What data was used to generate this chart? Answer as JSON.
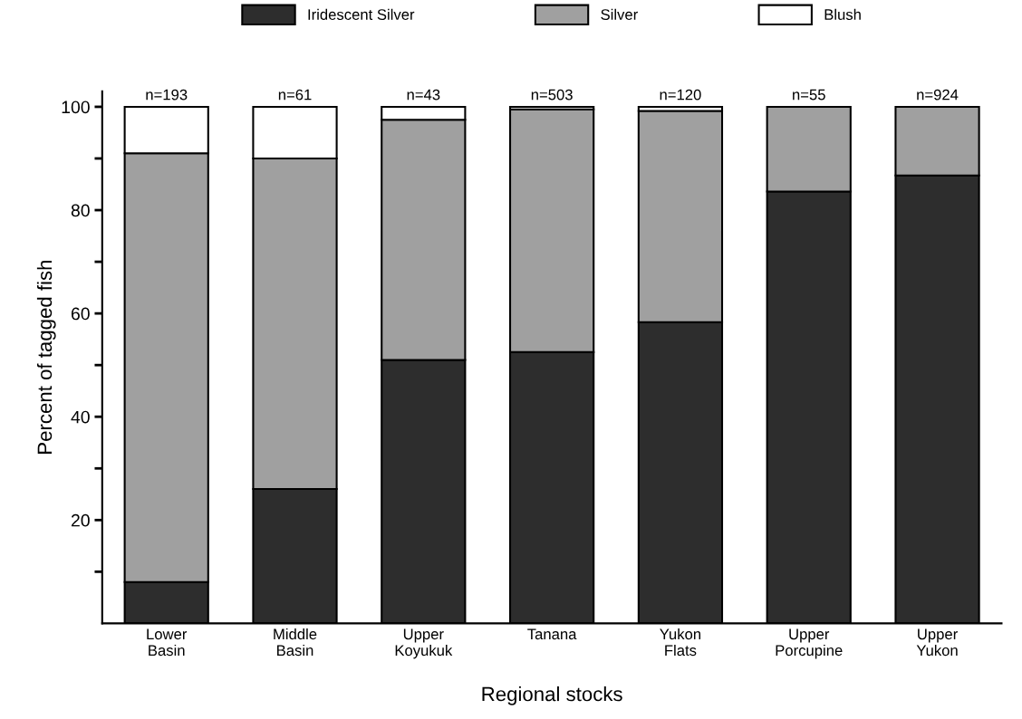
{
  "chart_data": {
    "type": "bar",
    "stacked": true,
    "xlabel": "Regional stocks",
    "ylabel": "Percent of tagged fish",
    "categories": [
      "Lower\nBasin",
      "Middle\nBasin",
      "Upper\nKoyukuk",
      "Tanana",
      "Yukon\nFlats",
      "Upper\nPorcupine",
      "Upper\nYukon"
    ],
    "series": [
      {
        "name": "Iridescent Silver",
        "color": "#2d2d2d",
        "values": [
          8,
          26,
          51,
          52.5,
          58.3,
          83.6,
          86.7
        ]
      },
      {
        "name": "Silver",
        "color": "#a0a0a0",
        "values": [
          83,
          64,
          46.5,
          47,
          40.9,
          16.4,
          13.3
        ]
      },
      {
        "name": "Blush",
        "color": "#ffffff",
        "values": [
          9,
          10,
          2.5,
          0.5,
          0.8,
          0,
          0
        ]
      }
    ],
    "ylim": [
      0,
      103
    ],
    "yticks": [
      {
        "value": 10,
        "label": null
      },
      20,
      {
        "value": 30,
        "label": null
      },
      40,
      {
        "value": 50,
        "label": null
      },
      60,
      {
        "value": 70,
        "label": null
      },
      80,
      {
        "value": 90,
        "label": null
      },
      100
    ],
    "annotations": [
      {
        "text": "n=193",
        "x": "Lower\nBasin",
        "y": 100
      },
      {
        "text": "n=61",
        "x": "Middle\nBasin",
        "y": 100
      },
      {
        "text": "n=43",
        "x": "Upper\nKoyukuk",
        "y": 100
      },
      {
        "text": "n=503",
        "x": "Tanana",
        "y": 100
      },
      {
        "text": "n=120",
        "x": "Yukon\nFlats",
        "y": 100
      },
      {
        "text": "n=55",
        "x": "Upper\nPorcupine",
        "y": 100
      },
      {
        "text": "n=924",
        "x": "Upper\nYukon",
        "y": 100
      }
    ],
    "legend": "top",
    "grid": false
  }
}
